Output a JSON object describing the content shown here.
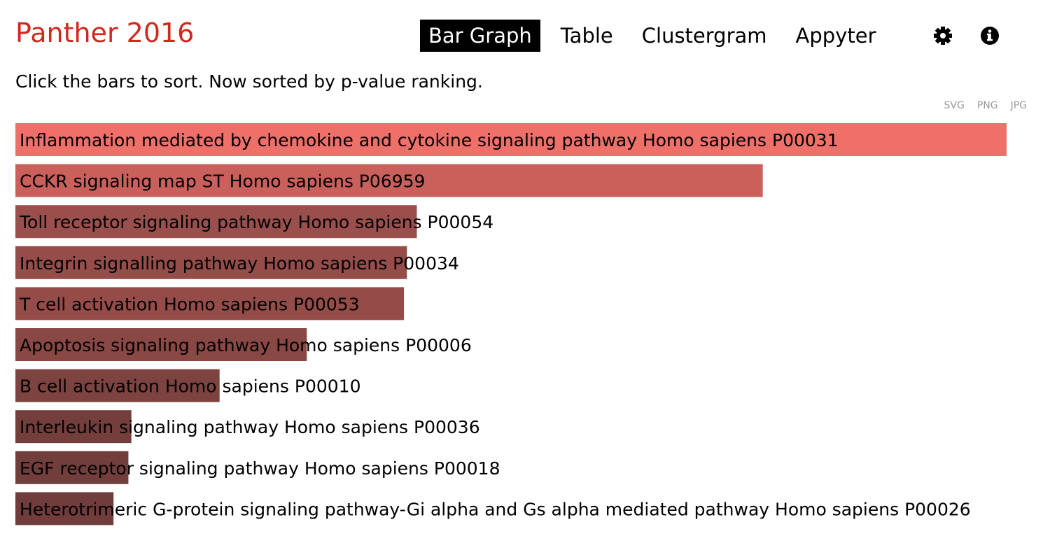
{
  "header": {
    "title": "Panther 2016",
    "nav": {
      "bar_graph": "Bar Graph",
      "table": "Table",
      "clustergram": "Clustergram",
      "appyter": "Appyter"
    },
    "icons": [
      "gear-icon",
      "info-icon"
    ]
  },
  "subtitle": {
    "prefix": "Click the bars to sort. Now sorted by ",
    "emphasis": "p-value ranking",
    "suffix": "."
  },
  "exports": {
    "svg": "SVG",
    "png": "PNG",
    "jpg": "JPG"
  },
  "chart_data": {
    "type": "bar",
    "orientation": "horizontal",
    "sort": "p-value ranking",
    "categories": [
      "Inflammation mediated by chemokine and cytokine signaling pathway Homo sapiens P00031",
      "CCKR signaling map ST Homo sapiens P06959",
      "Toll receptor signaling pathway Homo sapiens P00054",
      "Integrin signalling pathway Homo sapiens P00034",
      "T cell activation Homo sapiens P00053",
      "Apoptosis signaling pathway Homo sapiens P00006",
      "B cell activation Homo sapiens P00010",
      "Interleukin signaling pathway Homo sapiens P00036",
      "EGF receptor signaling pathway Homo sapiens P00018",
      "Heterotrimeric G-protein signaling pathway-Gi alpha and Gs alpha mediated pathway Homo sapiens P00026"
    ],
    "values": [
      1.0,
      0.754,
      0.405,
      0.395,
      0.392,
      0.294,
      0.206,
      0.117,
      0.114,
      0.099
    ],
    "colors": [
      "#ee7069",
      "#c9605c",
      "#9a4f4c",
      "#964d4a",
      "#954c49",
      "#8a4845",
      "#7c4340",
      "#743e3d",
      "#723e3c",
      "#713c3c"
    ],
    "xlim": [
      0,
      1
    ]
  }
}
